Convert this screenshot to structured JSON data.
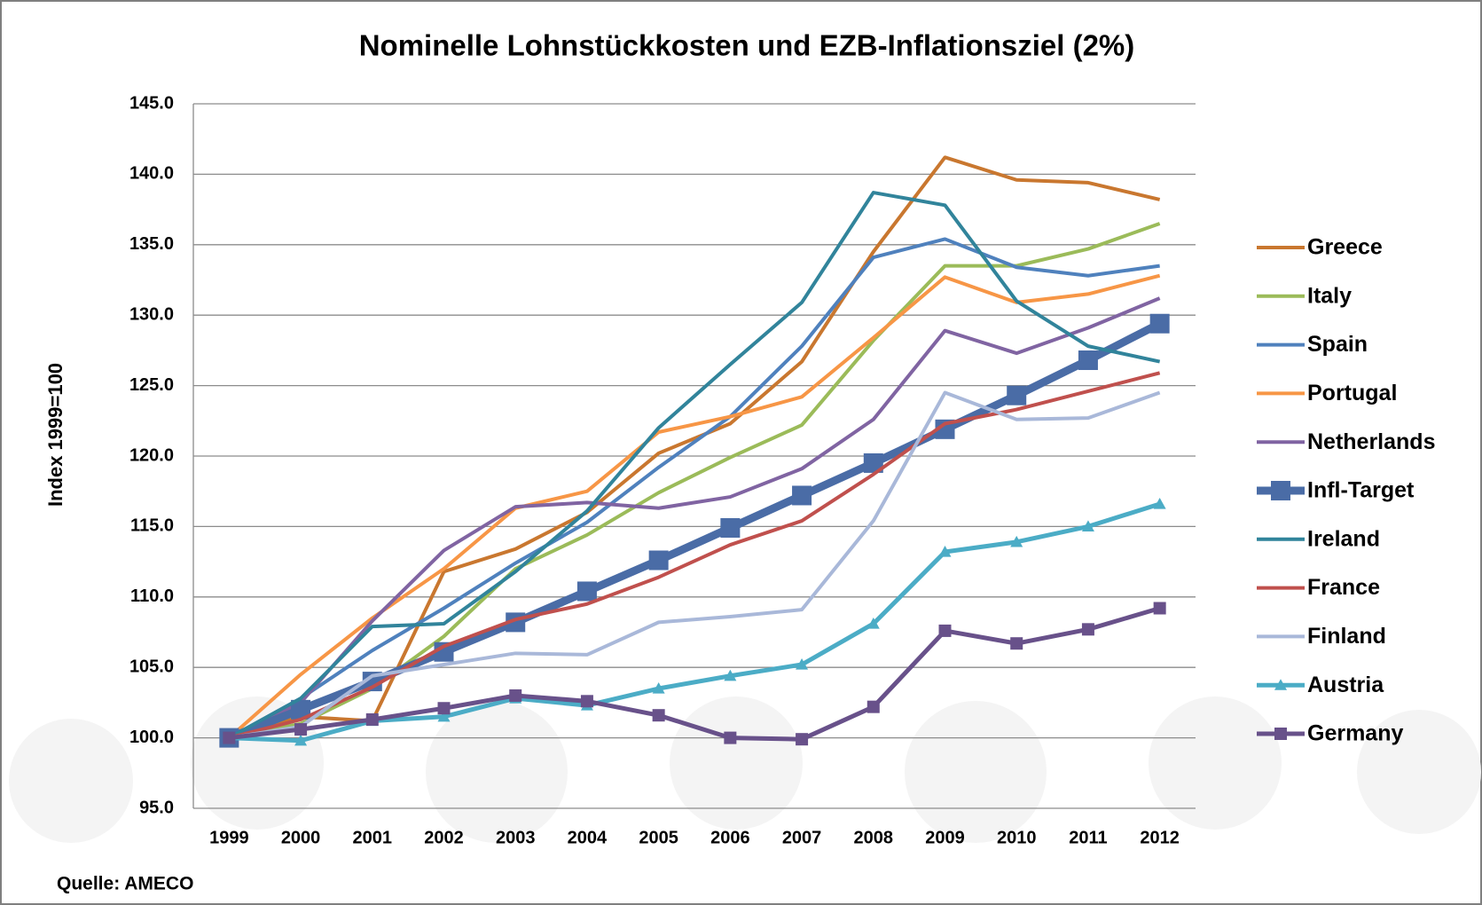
{
  "chart_data": {
    "type": "line",
    "title": "Nominelle Lohnstückkosten und EZB-Inflationsziel (2%)",
    "y_label": "Index 1999=100",
    "source": "Quelle: AMECO",
    "categories": [
      "1999",
      "2000",
      "2001",
      "2002",
      "2003",
      "2004",
      "2005",
      "2006",
      "2007",
      "2008",
      "2009",
      "2010",
      "2011",
      "2012"
    ],
    "ylim": [
      95,
      145
    ],
    "yticks": [
      {
        "value": 95,
        "label": "95.0"
      },
      {
        "value": 100,
        "label": "100.0"
      },
      {
        "value": 105,
        "label": "105.0"
      },
      {
        "value": 110,
        "label": "110.0"
      },
      {
        "value": 115,
        "label": "115.0"
      },
      {
        "value": 120,
        "label": "120.0"
      },
      {
        "value": 125,
        "label": "125.0"
      },
      {
        "value": 130,
        "label": "130.0"
      },
      {
        "value": 135,
        "label": "135.0"
      },
      {
        "value": 140,
        "label": "140.0"
      },
      {
        "value": 145,
        "label": "145.0"
      }
    ],
    "grid": true,
    "legend": "right",
    "series": [
      {
        "name": "Greece",
        "color": "#c9772f",
        "values": [
          100,
          101.5,
          101.2,
          111.8,
          113.4,
          116,
          120.2,
          122.3,
          126.7,
          134.5,
          141.2,
          139.6,
          139.4,
          138.2
        ]
      },
      {
        "name": "Italy",
        "color": "#9bbb59",
        "values": [
          100,
          101,
          103.5,
          107.2,
          112,
          114.4,
          117.4,
          119.9,
          122.2,
          128.2,
          133.5,
          133.5,
          134.7,
          136.5
        ]
      },
      {
        "name": "Spain",
        "color": "#4f81bd",
        "values": [
          100,
          102.8,
          106.2,
          109.2,
          112.4,
          115.3,
          119.2,
          122.8,
          127.8,
          134.1,
          135.4,
          133.4,
          132.8,
          133.5
        ]
      },
      {
        "name": "Portugal",
        "color": "#f79646",
        "values": [
          100,
          104.5,
          108.5,
          112,
          116.3,
          117.5,
          121.7,
          122.8,
          124.2,
          128.4,
          132.7,
          130.9,
          131.5,
          132.8
        ]
      },
      {
        "name": "Netherlands",
        "color": "#8064a2",
        "values": [
          100,
          102.5,
          108.3,
          113.3,
          116.4,
          116.7,
          116.3,
          117.1,
          119.1,
          122.6,
          128.9,
          127.3,
          129.1,
          131.2
        ]
      },
      {
        "name": "Infl-Target",
        "color": "#4a6ca6",
        "marker": "square",
        "width": 9,
        "values": [
          100,
          102,
          104,
          106.1,
          108.2,
          110.4,
          112.6,
          114.9,
          117.2,
          119.5,
          121.9,
          124.3,
          126.8,
          129.4
        ]
      },
      {
        "name": "Ireland",
        "color": "#31849b",
        "values": [
          100,
          102.8,
          107.9,
          108.1,
          111.8,
          116.1,
          122,
          126.5,
          130.9,
          138.7,
          137.8,
          131,
          127.8,
          126.7
        ]
      },
      {
        "name": "France",
        "color": "#c0504d",
        "values": [
          100,
          101.3,
          103.6,
          106.5,
          108.4,
          109.5,
          111.4,
          113.7,
          115.4,
          118.7,
          122.3,
          123.3,
          124.6,
          125.9
        ]
      },
      {
        "name": "Finland",
        "color": "#a9b8d9",
        "values": [
          100,
          100.8,
          104.4,
          105.2,
          106,
          105.9,
          108.2,
          108.6,
          109.1,
          115.4,
          124.5,
          122.6,
          122.7,
          124.5
        ]
      },
      {
        "name": "Austria",
        "color": "#4bacc6",
        "marker": "triangle",
        "width": 5,
        "values": [
          100,
          99.8,
          101.2,
          101.5,
          102.8,
          102.3,
          103.5,
          104.4,
          105.2,
          108.1,
          113.2,
          113.9,
          115,
          116.6
        ]
      },
      {
        "name": "Germany",
        "color": "#68518a",
        "marker": "square",
        "width": 5,
        "values": [
          100,
          100.6,
          101.3,
          102.1,
          103,
          102.6,
          101.6,
          100,
          99.9,
          102.2,
          107.6,
          106.7,
          107.7,
          109.2
        ]
      }
    ]
  }
}
